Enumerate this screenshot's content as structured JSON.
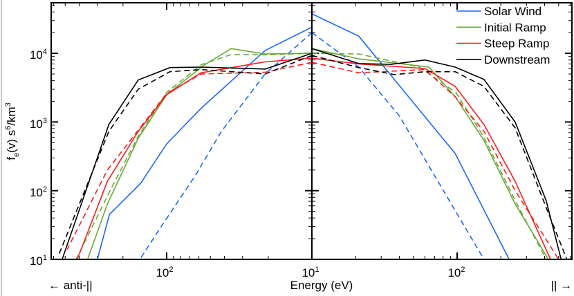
{
  "chart_data": {
    "type": "line",
    "ylabel": "f_e(v) s^6/km^3",
    "xlabel": "Energy (eV)",
    "direction_labels": {
      "left": "← anti-||",
      "right": "|| →"
    },
    "xscale": "log",
    "yscale": "log",
    "x_panels": [
      "anti-parallel (mirrored, energy increases to the left)",
      "parallel"
    ],
    "xlim": [
      10,
      620
    ],
    "ylim": [
      10,
      54000
    ],
    "x_tick_labels": {
      "left": [
        {
          "value": 100,
          "base": "10",
          "exp": "2"
        }
      ],
      "center": {
        "value": 10,
        "base": "10",
        "exp": "1"
      },
      "right": [
        {
          "value": 100,
          "base": "10",
          "exp": "2"
        }
      ]
    },
    "y_tick_labels": [
      {
        "value": 10,
        "base": "10",
        "exp": "1"
      },
      {
        "value": 100,
        "base": "10",
        "exp": "2"
      },
      {
        "value": 1000,
        "base": "10",
        "exp": "3"
      },
      {
        "value": 10000,
        "base": "10",
        "exp": "4"
      }
    ],
    "grid": false,
    "legend_position": "top-right",
    "line_styles_unlabeled": [
      "solid",
      "dashed"
    ],
    "series": [
      {
        "name": "Solar Wind",
        "color": "#1a66ff",
        "solid": {
          "left": [
            [
              10,
              24000
            ],
            [
              21,
              11000
            ],
            [
              58,
              1580
            ],
            [
              100,
              480
            ],
            [
              151,
              128
            ],
            [
              248,
              45
            ],
            [
              300,
              10
            ]
          ],
          "right": [
            [
              10,
              37600
            ],
            [
              21,
              17800
            ],
            [
              97,
              347
            ],
            [
              228,
              10
            ]
          ]
        },
        "dashed": {
          "left": [
            [
              10,
              20000
            ],
            [
              21,
              5000
            ],
            [
              42,
              730
            ],
            [
              63,
              170
            ],
            [
              109,
              30
            ],
            [
              153,
              10
            ]
          ],
          "right": [
            [
              10,
              20000
            ],
            [
              21,
              6300
            ],
            [
              40,
              1230
            ],
            [
              153,
              10
            ]
          ]
        }
      },
      {
        "name": "Initial Ramp",
        "color": "#66aa33",
        "solid": {
          "left": [
            [
              10,
              10000
            ],
            [
              21,
              9800
            ],
            [
              36,
              11700
            ],
            [
              56,
              6600
            ],
            [
              100,
              2500
            ],
            [
              157,
              580
            ],
            [
              256,
              64
            ],
            [
              350,
              10
            ]
          ],
          "right": [
            [
              10,
              11700
            ],
            [
              21,
              8300
            ],
            [
              64,
              6300
            ],
            [
              97,
              2330
            ],
            [
              153,
              540
            ],
            [
              251,
              64
            ],
            [
              425,
              10
            ]
          ]
        },
        "dashed": {
          "left": [
            [
              10,
              10000
            ],
            [
              21,
              9500
            ],
            [
              36,
              9600
            ],
            [
              58,
              6800
            ],
            [
              100,
              2700
            ],
            [
              157,
              620
            ],
            [
              240,
              110
            ],
            [
              420,
              10
            ]
          ],
          "right": [
            [
              10,
              10000
            ],
            [
              21,
              9800
            ],
            [
              55,
              6300
            ],
            [
              98,
              2700
            ],
            [
              153,
              600
            ],
            [
              251,
              72
            ],
            [
              410,
              10
            ]
          ]
        }
      },
      {
        "name": "Steep Ramp",
        "color": "#ff1a1a",
        "solid": {
          "left": [
            [
              10,
              8500
            ],
            [
              21,
              7500
            ],
            [
              58,
              5200
            ],
            [
              100,
              2500
            ],
            [
              157,
              730
            ],
            [
              256,
              137
            ],
            [
              413,
              10
            ]
          ],
          "right": [
            [
              10,
              8500
            ],
            [
              21,
              7000
            ],
            [
              60,
              6000
            ],
            [
              97,
              3300
            ],
            [
              153,
              920
            ],
            [
              251,
              137
            ],
            [
              440,
              10
            ]
          ]
        },
        "dashed": {
          "left": [
            [
              10,
              7400
            ],
            [
              21,
              5300
            ],
            [
              58,
              5000
            ],
            [
              100,
              2600
            ],
            [
              157,
              760
            ],
            [
              256,
              200
            ],
            [
              484,
              14
            ]
          ],
          "right": [
            [
              10,
              7400
            ],
            [
              21,
              5200
            ],
            [
              60,
              5800
            ],
            [
              97,
              2330
            ],
            [
              153,
              730
            ],
            [
              251,
              100
            ],
            [
              500,
              10
            ]
          ]
        }
      },
      {
        "name": "Downstream",
        "color": "#000000",
        "solid": {
          "left": [
            [
              10,
              10000
            ],
            [
              21,
              5900
            ],
            [
              58,
              6300
            ],
            [
              95,
              6200
            ],
            [
              157,
              4100
            ],
            [
              250,
              920
            ],
            [
              524,
              10
            ]
          ],
          "right": [
            [
              10,
              11700
            ],
            [
              21,
              7100
            ],
            [
              35,
              6900
            ],
            [
              60,
              8000
            ],
            [
              97,
              6300
            ],
            [
              153,
              4170
            ],
            [
              251,
              1000
            ],
            [
              410,
              72
            ],
            [
              520,
              10
            ]
          ]
        },
        "dashed": {
          "left": [
            [
              10,
              9300
            ],
            [
              21,
              5000
            ],
            [
              58,
              5800
            ],
            [
              95,
              5400
            ],
            [
              157,
              3000
            ],
            [
              250,
              730
            ],
            [
              560,
              11
            ]
          ],
          "right": [
            [
              10,
              9300
            ],
            [
              21,
              6200
            ],
            [
              37,
              4900
            ],
            [
              60,
              5400
            ],
            [
              97,
              5400
            ],
            [
              153,
              3300
            ],
            [
              251,
              820
            ],
            [
              410,
              57
            ],
            [
              570,
              10
            ]
          ]
        }
      }
    ]
  }
}
